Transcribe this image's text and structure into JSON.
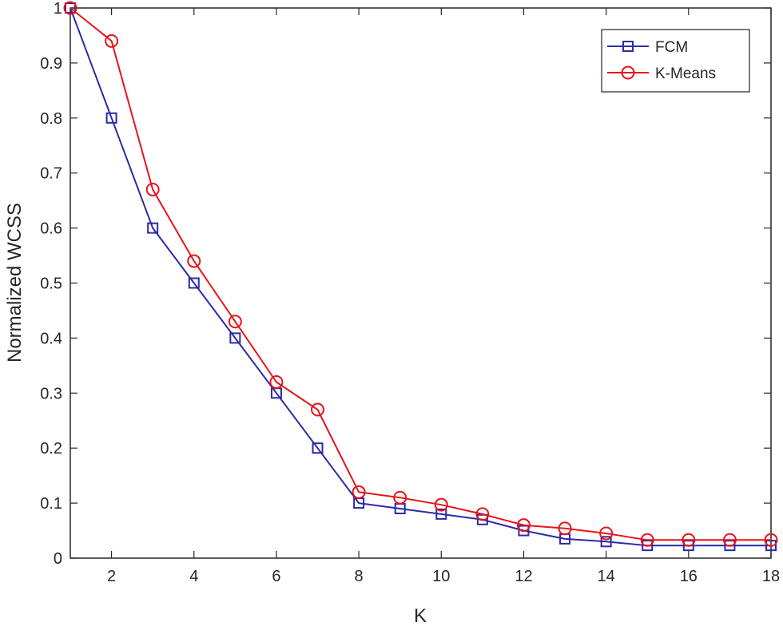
{
  "chart_data": {
    "type": "line",
    "title": "",
    "xlabel": "K",
    "ylabel": "Normalized WCSS",
    "xlim": [
      1,
      18
    ],
    "ylim": [
      0,
      1
    ],
    "xticks": [
      2,
      4,
      6,
      8,
      10,
      12,
      14,
      16,
      18
    ],
    "yticks": [
      0,
      0.1,
      0.2,
      0.3,
      0.4,
      0.5,
      0.6,
      0.7,
      0.8,
      0.9,
      1
    ],
    "ytick_labels": [
      "0",
      "0.1",
      "0.2",
      "0.3",
      "0.4",
      "0.5",
      "0.6",
      "0.7",
      "0.8",
      "0.9",
      "1"
    ],
    "grid": false,
    "legend_position": "top-right",
    "x": [
      1,
      2,
      3,
      4,
      5,
      6,
      7,
      8,
      9,
      10,
      11,
      12,
      13,
      14,
      15,
      16,
      17,
      18
    ],
    "series": [
      {
        "name": "FCM",
        "color": "#2b2ba6",
        "marker": "square",
        "values": [
          1.0,
          0.8,
          0.6,
          0.5,
          0.4,
          0.3,
          0.2,
          0.1,
          0.09,
          0.08,
          0.07,
          0.05,
          0.035,
          0.03,
          0.023,
          0.023,
          0.023,
          0.023
        ]
      },
      {
        "name": "K-Means",
        "color": "#e8141b",
        "marker": "circle",
        "values": [
          1.0,
          0.94,
          0.67,
          0.54,
          0.43,
          0.32,
          0.27,
          0.12,
          0.11,
          0.097,
          0.08,
          0.06,
          0.054,
          0.045,
          0.033,
          0.033,
          0.033,
          0.033
        ]
      }
    ]
  }
}
